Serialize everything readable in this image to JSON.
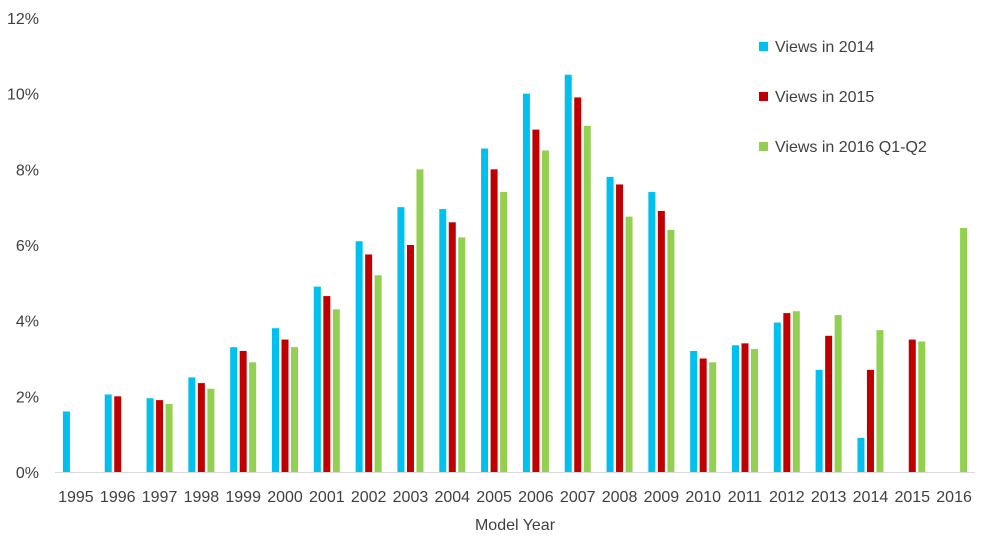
{
  "chart_data": {
    "type": "bar",
    "title": "",
    "xlabel": "Model Year",
    "ylabel": "",
    "ylim": [
      0,
      12
    ],
    "y_ticks": [
      "0%",
      "2%",
      "4%",
      "6%",
      "8%",
      "10%",
      "12%"
    ],
    "y_unit": "%",
    "grid": false,
    "legend_position": "top-right",
    "categories": [
      "1995",
      "1996",
      "1997",
      "1998",
      "1999",
      "2000",
      "2001",
      "2002",
      "2003",
      "2004",
      "2005",
      "2006",
      "2007",
      "2008",
      "2009",
      "2010",
      "2011",
      "2012",
      "2013",
      "2014",
      "2015",
      "2016"
    ],
    "series": [
      {
        "name": "Views in 2014",
        "color": "#00C0F0",
        "values": [
          1.6,
          2.05,
          1.95,
          2.5,
          3.3,
          3.8,
          4.9,
          6.1,
          7.0,
          6.95,
          8.55,
          10.0,
          10.5,
          7.8,
          7.4,
          3.2,
          3.35,
          3.95,
          2.7,
          0.9,
          null,
          null
        ]
      },
      {
        "name": "Views in 2015",
        "color": "#C00000",
        "values": [
          null,
          2.0,
          1.9,
          2.35,
          3.2,
          3.5,
          4.65,
          5.75,
          6.0,
          6.6,
          8.0,
          9.05,
          9.9,
          7.6,
          6.9,
          3.0,
          3.4,
          4.2,
          3.6,
          2.7,
          3.5,
          null
        ]
      },
      {
        "name": "Views in 2016 Q1-Q2",
        "color": "#92D050",
        "values": [
          null,
          null,
          1.8,
          2.2,
          2.9,
          3.3,
          4.3,
          5.2,
          8.0,
          6.2,
          7.4,
          8.5,
          9.15,
          6.75,
          6.4,
          2.9,
          3.25,
          4.25,
          4.15,
          3.75,
          3.45,
          6.45
        ]
      }
    ]
  }
}
